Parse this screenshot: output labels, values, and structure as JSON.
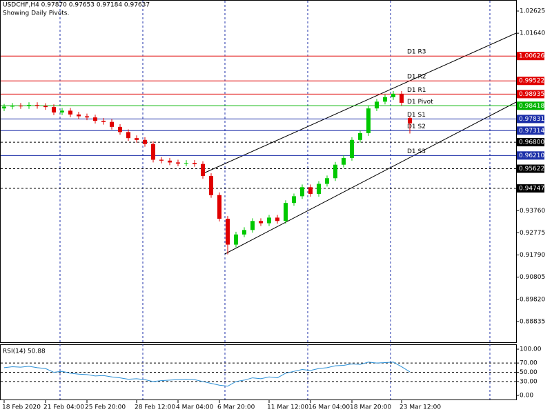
{
  "chart_data": [
    {
      "type": "candlestick",
      "title": "USDCHF,H4  0.97870 0.97653 0.97184 0.97637",
      "subtitle": "Showing Daily Pivots.",
      "categories": [
        "18 Feb 2020",
        null,
        null,
        null,
        null,
        "21 Feb 04:00",
        null,
        null,
        null,
        null,
        "25 Feb 20:00",
        null,
        null,
        null,
        null,
        null,
        "28 Feb 12:00",
        null,
        null,
        null,
        null,
        "4 Mar 04:00",
        null,
        null,
        null,
        null,
        "6 Mar 20:00",
        null,
        null,
        null,
        null,
        null,
        "11 Mar 12:00",
        null,
        null,
        null,
        null,
        "16 Mar 04:00",
        null,
        null,
        null,
        null,
        "18 Mar 20:00",
        null,
        null,
        null,
        null,
        null,
        "23 Mar 12:00",
        null
      ],
      "open": [
        0.983,
        0.9838,
        0.9842,
        0.984,
        0.9845,
        0.9841,
        0.9836,
        0.9812,
        0.982,
        0.9803,
        0.9795,
        0.979,
        0.9775,
        0.977,
        0.9748,
        0.9725,
        0.9698,
        0.969,
        0.9672,
        0.9602,
        0.9598,
        0.959,
        0.9585,
        0.9588,
        0.9583,
        0.953,
        0.9445,
        0.934,
        0.9225,
        0.927,
        0.929,
        0.933,
        0.932,
        0.9345,
        0.933,
        0.941,
        0.944,
        0.948,
        0.945,
        0.9495,
        0.952,
        0.958,
        0.961,
        0.969,
        0.972,
        0.983,
        0.986,
        0.988,
        0.9895,
        0.9787
      ],
      "high": [
        0.985,
        0.9854,
        0.9854,
        0.9857,
        0.9857,
        0.9853,
        0.9848,
        0.9832,
        0.9832,
        0.9815,
        0.9807,
        0.9802,
        0.9787,
        0.9782,
        0.976,
        0.9737,
        0.971,
        0.9702,
        0.9684,
        0.9614,
        0.961,
        0.9602,
        0.96,
        0.96,
        0.9595,
        0.9542,
        0.9457,
        0.9352,
        0.9282,
        0.9302,
        0.9342,
        0.9342,
        0.9357,
        0.9357,
        0.9422,
        0.9452,
        0.9492,
        0.9492,
        0.9507,
        0.9532,
        0.9592,
        0.9622,
        0.9702,
        0.9732,
        0.9842,
        0.9872,
        0.9892,
        0.9907,
        0.9907,
        0.9795
      ],
      "low": [
        0.9818,
        0.9826,
        0.9828,
        0.9828,
        0.9829,
        0.9824,
        0.98,
        0.98,
        0.9791,
        0.9783,
        0.9778,
        0.9763,
        0.9758,
        0.9736,
        0.9713,
        0.9686,
        0.9678,
        0.966,
        0.959,
        0.9586,
        0.9578,
        0.9573,
        0.9573,
        0.9571,
        0.9518,
        0.9433,
        0.9328,
        0.9182,
        0.9213,
        0.9258,
        0.9278,
        0.9308,
        0.9308,
        0.9318,
        0.9318,
        0.9398,
        0.9428,
        0.9438,
        0.9438,
        0.9483,
        0.9508,
        0.9568,
        0.9598,
        0.9678,
        0.9708,
        0.9818,
        0.9848,
        0.9868,
        0.9843,
        0.97184
      ],
      "close": [
        0.9838,
        0.9842,
        0.984,
        0.9845,
        0.9841,
        0.9836,
        0.9812,
        0.982,
        0.9803,
        0.9795,
        0.979,
        0.9775,
        0.977,
        0.9748,
        0.9725,
        0.9698,
        0.969,
        0.9672,
        0.9602,
        0.9598,
        0.959,
        0.9585,
        0.9588,
        0.9583,
        0.953,
        0.9445,
        0.934,
        0.9225,
        0.927,
        0.929,
        0.933,
        0.932,
        0.9345,
        0.933,
        0.941,
        0.944,
        0.948,
        0.945,
        0.9495,
        0.952,
        0.958,
        0.961,
        0.969,
        0.972,
        0.983,
        0.986,
        0.988,
        0.9895,
        0.9855,
        0.97637
      ],
      "up_color": "#00c800",
      "down_color": "#e00000",
      "ylim": [
        0.87884,
        1.03115
      ],
      "yticks": [
        1.02625,
        {
          "value": 1.0164,
          "label": "1.01640"
        },
        {
          "value": 0.9376,
          "label": "0.93760"
        },
        0.92775,
        {
          "value": 0.9179,
          "label": "0.91790"
        },
        0.90805,
        {
          "value": 0.8982,
          "label": "0.89820"
        },
        0.88835
      ],
      "levels": {
        "names": [
          "D1 R3",
          "D1 R2",
          "D1 R1",
          "D1 Pivot",
          "D1 S1",
          "D1 S2",
          "D1 S3"
        ],
        "values": [
          1.00626,
          0.99522,
          0.98935,
          0.98418,
          0.97831,
          0.97314,
          0.9621
        ],
        "value_labels": [
          "1.00626",
          "0.99522",
          "0.98935",
          "0.98418",
          "0.97831",
          "0.97314",
          "0.96210"
        ],
        "colors": [
          "#e00000",
          "#e00000",
          "#e00000",
          "#00b400",
          "#1c2fa8",
          "#1c2fa8",
          "#1c2fa8"
        ]
      },
      "dashed_levels": {
        "values": [
          0.968,
          0.95622,
          0.94747
        ],
        "value_labels": [
          "0.96800",
          "0.95622",
          "0.94747"
        ],
        "color": "#000000"
      }
    },
    {
      "type": "line",
      "title": "RSI(14) 50.88",
      "color": "#2a8fd6",
      "values": [
        60,
        62,
        61,
        63,
        60,
        58,
        50,
        52,
        48,
        46,
        45,
        42,
        43,
        40,
        38,
        35,
        36,
        34,
        30,
        32,
        33,
        34,
        35,
        34,
        30,
        26,
        22,
        20,
        30,
        33,
        38,
        36,
        40,
        38,
        48,
        52,
        56,
        54,
        58,
        60,
        64,
        65,
        68,
        67,
        72,
        70,
        71,
        72,
        62,
        50.88
      ],
      "ylim": [
        -10.4,
        109
      ],
      "yticks": [
        {
          "value": 100,
          "label": "100.00"
        },
        {
          "value": 70,
          "label": "70.00"
        },
        {
          "value": 50,
          "label": "50.00"
        },
        {
          "value": 30,
          "label": "30.00"
        },
        {
          "value": 0,
          "label": "0.00"
        }
      ]
    }
  ]
}
